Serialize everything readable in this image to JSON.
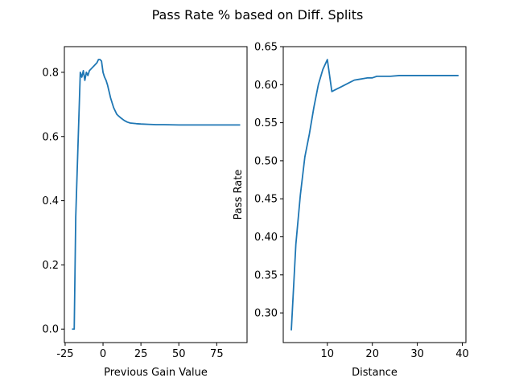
{
  "figure": {
    "title": "Pass Rate % based on Diff. Splits",
    "line_color": "#1f77b4"
  },
  "chart_data": [
    {
      "type": "line",
      "title": "",
      "xlabel": "Previous Gain Value",
      "ylabel": "",
      "xlim": [
        -25.5,
        95
      ],
      "ylim": [
        -0.042,
        0.88
      ],
      "xticks": [
        -25,
        0,
        25,
        50,
        75
      ],
      "yticks": [
        0.0,
        0.2,
        0.4,
        0.6,
        0.8
      ],
      "ytick_labels": [
        "0.0",
        "0.2",
        "0.4",
        "0.6",
        "0.8"
      ],
      "grid": false,
      "series": [
        {
          "x": [
            -20,
            -19,
            -18,
            -17,
            -16,
            -15,
            -14,
            -13,
            -12,
            -11,
            -10,
            -9,
            -8,
            -7,
            -6,
            -5,
            -4,
            -3,
            -2,
            -1,
            0,
            1,
            2,
            3,
            4,
            5,
            6,
            7,
            8,
            9,
            10,
            12,
            14,
            16,
            18,
            20,
            22,
            25,
            30,
            35,
            40,
            50,
            60,
            70,
            80,
            90
          ],
          "y": [
            0.0,
            0.0,
            0.35,
            0.5,
            0.65,
            0.8,
            0.785,
            0.805,
            0.775,
            0.8,
            0.79,
            0.805,
            0.81,
            0.815,
            0.82,
            0.825,
            0.83,
            0.84,
            0.84,
            0.835,
            0.8,
            0.785,
            0.775,
            0.76,
            0.74,
            0.72,
            0.705,
            0.69,
            0.68,
            0.67,
            0.665,
            0.657,
            0.65,
            0.645,
            0.642,
            0.641,
            0.64,
            0.639,
            0.638,
            0.637,
            0.637,
            0.636,
            0.636,
            0.636,
            0.636,
            0.636
          ]
        }
      ]
    },
    {
      "type": "line",
      "title": "",
      "xlabel": "Distance",
      "ylabel": "Pass Rate",
      "xlim": [
        0.2,
        40.8
      ],
      "ylim": [
        0.261,
        0.65
      ],
      "xticks": [
        10,
        20,
        30,
        40
      ],
      "yticks": [
        0.3,
        0.35,
        0.4,
        0.45,
        0.5,
        0.55,
        0.6,
        0.65
      ],
      "ytick_labels": [
        "0.30",
        "0.35",
        "0.40",
        "0.45",
        "0.50",
        "0.55",
        "0.60",
        "0.65"
      ],
      "grid": false,
      "series": [
        {
          "x": [
            2,
            3,
            4,
            5,
            6,
            7,
            8,
            9,
            10,
            11,
            12,
            13,
            14,
            15,
            16,
            17,
            18,
            19,
            20,
            21,
            22,
            24,
            26,
            28,
            30,
            32,
            34,
            36,
            38,
            39
          ],
          "y": [
            0.278,
            0.39,
            0.455,
            0.505,
            0.535,
            0.57,
            0.6,
            0.62,
            0.633,
            0.591,
            0.594,
            0.597,
            0.6,
            0.603,
            0.606,
            0.607,
            0.608,
            0.609,
            0.609,
            0.611,
            0.611,
            0.611,
            0.612,
            0.612,
            0.612,
            0.612,
            0.612,
            0.612,
            0.612,
            0.612
          ]
        }
      ]
    }
  ]
}
